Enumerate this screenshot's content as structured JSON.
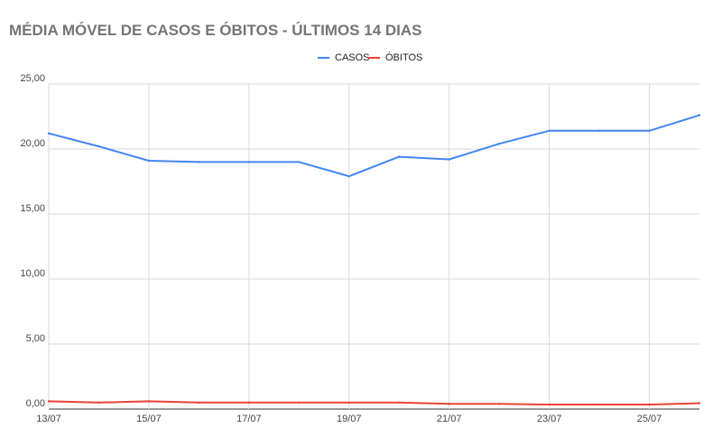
{
  "chart_data": {
    "type": "line",
    "title": "MÉDIA MÓVEL DE CASOS E ÓBITOS - ÚLTIMOS 14 DIAS",
    "xlabel": "",
    "ylabel": "",
    "legend_position": "top-center",
    "grid": true,
    "ylim": [
      0,
      25
    ],
    "yticks": [
      "0,00",
      "5,00",
      "10,00",
      "15,00",
      "20,00",
      "25,00"
    ],
    "x": [
      "13/07",
      "14/07",
      "15/07",
      "16/07",
      "17/07",
      "18/07",
      "19/07",
      "20/07",
      "21/07",
      "22/07",
      "23/07",
      "24/07",
      "25/07",
      "26/07"
    ],
    "xtick_labels": [
      "13/07",
      "15/07",
      "17/07",
      "19/07",
      "21/07",
      "23/07",
      "25/07"
    ],
    "series": [
      {
        "name": "CASOS",
        "color": "#4285f4",
        "values": [
          21.2,
          20.2,
          19.1,
          19.0,
          19.0,
          19.0,
          17.9,
          19.4,
          19.2,
          20.4,
          21.4,
          21.4,
          21.4,
          22.6
        ]
      },
      {
        "name": "ÓBITOS",
        "color": "#ea4335",
        "values": [
          0.6,
          0.5,
          0.6,
          0.5,
          0.5,
          0.5,
          0.5,
          0.5,
          0.4,
          0.4,
          0.35,
          0.35,
          0.35,
          0.45
        ]
      }
    ]
  }
}
